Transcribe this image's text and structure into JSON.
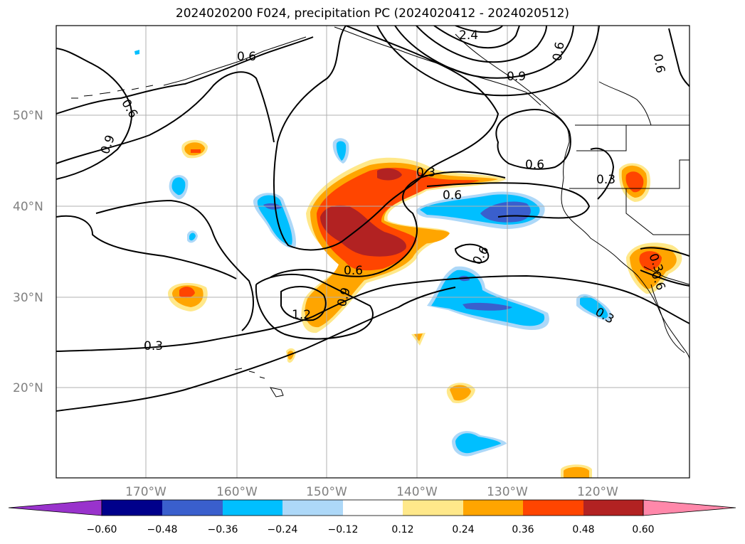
{
  "title": "2024020200 F024, precipitation PC (2024020412 - 2024020512)",
  "axes": {
    "lat_labels": [
      "50°N",
      "40°N",
      "30°N",
      "20°N"
    ],
    "lon_labels": [
      "170°W",
      "160°W",
      "150°W",
      "140°W",
      "130°W",
      "120°W"
    ]
  },
  "contour_labels": [
    "0.6",
    "0.6",
    "0.9",
    "0.3",
    "0.6",
    "0.6",
    "0.3",
    "0.6",
    "0.9",
    "1.2",
    "0.6",
    "0.3",
    "0.3",
    "0.6",
    "0.9",
    "0.6",
    "0.3",
    "0.6",
    "2.4"
  ],
  "colorbar": {
    "tick_labels": [
      "−0.60",
      "−0.48",
      "−0.36",
      "−0.24",
      "−0.12",
      "0.12",
      "0.24",
      "0.36",
      "0.48",
      "0.60"
    ],
    "colors": [
      "#9933cc",
      "#00008b",
      "#3a5fcd",
      "#00bfff",
      "#add8f8",
      "#ffffff",
      "#ffe88a",
      "#ffa500",
      "#ff4500",
      "#b22222",
      "#ff88aa"
    ]
  }
}
